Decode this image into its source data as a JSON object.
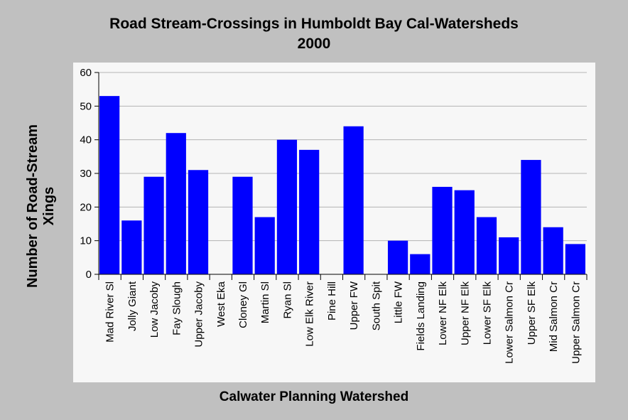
{
  "chart_data": {
    "type": "bar",
    "title": "Road Stream-Crossings in Humboldt Bay Cal-Watersheds",
    "subtitle": "2000",
    "xlabel": "Calwater Planning Watershed",
    "ylabel_lines": [
      "Number of Road-Stream",
      "Xings"
    ],
    "ylim": [
      0,
      60
    ],
    "yticks": [
      0,
      10,
      20,
      30,
      40,
      50,
      60
    ],
    "grid": true,
    "categories": [
      "Mad River Sl",
      "Jolly Giant",
      "Low Jacoby",
      "Fay Slough",
      "Upper Jacoby",
      "West Eka",
      "Cloney Gl",
      "Martin Sl",
      "Ryan Sl",
      "Low Elk River",
      "Pine Hill",
      "Upper FW",
      "South Spit",
      "Little FW",
      "Fields Landing",
      "Lower NF Elk",
      "Upper NF Elk",
      "Lower SF Elk",
      "Lower Salmon Cr",
      "Upper SF Elk",
      "Mid Salmon Cr",
      "Upper Salmon Cr"
    ],
    "values": [
      53,
      16,
      29,
      42,
      31,
      0,
      29,
      17,
      40,
      37,
      0,
      44,
      0,
      10,
      6,
      26,
      25,
      17,
      11,
      34,
      14,
      9
    ],
    "bar_color": "#0000ff",
    "plot_background": "#f7f7f7",
    "page_background": "#c0c0c0"
  }
}
